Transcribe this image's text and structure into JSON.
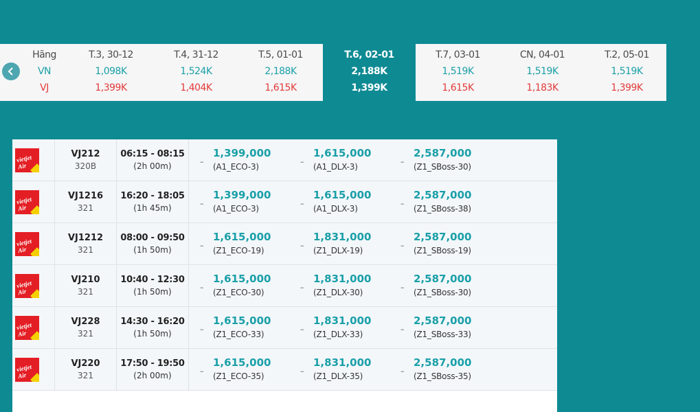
{
  "date_strip": {
    "label_col": {
      "header": "Hãng",
      "vn": "VN",
      "vj": "VJ"
    },
    "days": [
      {
        "date": "T.3, 30-12",
        "vn": "1,098K",
        "vj": "1,399K",
        "selected": false
      },
      {
        "date": "T.4, 31-12",
        "vn": "1,524K",
        "vj": "1,404K",
        "selected": false
      },
      {
        "date": "T.5, 01-01",
        "vn": "2,188K",
        "vj": "1,615K",
        "selected": false
      },
      {
        "date": "T.6, 02-01",
        "vn": "2,188K",
        "vj": "1,399K",
        "selected": true
      },
      {
        "date": "T.7, 03-01",
        "vn": "1,519K",
        "vj": "1,615K",
        "selected": false
      },
      {
        "date": "CN, 04-01",
        "vn": "1,519K",
        "vj": "1,183K",
        "selected": false
      },
      {
        "date": "T.2, 05-01",
        "vn": "1,519K",
        "vj": "1,399K",
        "selected": false
      }
    ],
    "prev_icon": "chevron-left-icon"
  },
  "flights": [
    {
      "logo_text": "vietjet Air",
      "code": "VJ212",
      "plane": "320B",
      "time": "06:15 - 08:15",
      "duration": "(2h 00m)",
      "fares": [
        {
          "dash": "–",
          "price": "1,399,000",
          "class": "(A1_ECO-3)"
        },
        {
          "dash": "–",
          "price": "1,615,000",
          "class": "(A1_DLX-3)"
        },
        {
          "dash": "–",
          "price": "2,587,000",
          "class": "(Z1_SBoss-30)"
        }
      ]
    },
    {
      "logo_text": "vietjet Air",
      "code": "VJ1216",
      "plane": "321",
      "time": "16:20 - 18:05",
      "duration": "(1h 45m)",
      "fares": [
        {
          "dash": "–",
          "price": "1,399,000",
          "class": "(A1_ECO-3)"
        },
        {
          "dash": "–",
          "price": "1,615,000",
          "class": "(A1_DLX-3)"
        },
        {
          "dash": "–",
          "price": "2,587,000",
          "class": "(Z1_SBoss-38)"
        }
      ]
    },
    {
      "logo_text": "vietjet Air",
      "code": "VJ1212",
      "plane": "321",
      "time": "08:00 - 09:50",
      "duration": "(1h 50m)",
      "fares": [
        {
          "dash": "–",
          "price": "1,615,000",
          "class": "(Z1_ECO-19)"
        },
        {
          "dash": "–",
          "price": "1,831,000",
          "class": "(Z1_DLX-19)"
        },
        {
          "dash": "–",
          "price": "2,587,000",
          "class": "(Z1_SBoss-19)"
        }
      ]
    },
    {
      "logo_text": "vietjet Air",
      "code": "VJ210",
      "plane": "321",
      "time": "10:40 - 12:30",
      "duration": "(1h 50m)",
      "fares": [
        {
          "dash": "–",
          "price": "1,615,000",
          "class": "(Z1_ECO-30)"
        },
        {
          "dash": "–",
          "price": "1,831,000",
          "class": "(Z1_DLX-30)"
        },
        {
          "dash": "–",
          "price": "2,587,000",
          "class": "(Z1_SBoss-30)"
        }
      ]
    },
    {
      "logo_text": "vietjet Air",
      "code": "VJ228",
      "plane": "321",
      "time": "14:30 - 16:20",
      "duration": "(1h 50m)",
      "fares": [
        {
          "dash": "–",
          "price": "1,615,000",
          "class": "(Z1_ECO-33)"
        },
        {
          "dash": "–",
          "price": "1,831,000",
          "class": "(Z1_DLX-33)"
        },
        {
          "dash": "–",
          "price": "2,587,000",
          "class": "(Z1_SBoss-33)"
        }
      ]
    },
    {
      "logo_text": "vietjet Air",
      "code": "VJ220",
      "plane": "321",
      "time": "17:50 - 19:50",
      "duration": "(2h 00m)",
      "fares": [
        {
          "dash": "–",
          "price": "1,615,000",
          "class": "(Z1_ECO-35)"
        },
        {
          "dash": "–",
          "price": "1,831,000",
          "class": "(Z1_DLX-35)"
        },
        {
          "dash": "–",
          "price": "2,587,000",
          "class": "(Z1_SBoss-35)"
        }
      ]
    }
  ]
}
